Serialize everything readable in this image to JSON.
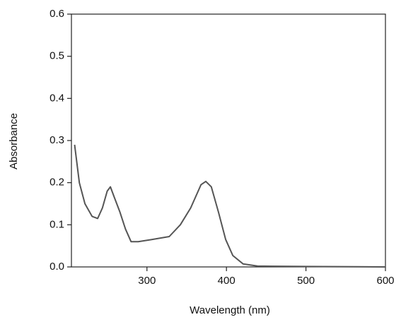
{
  "chart_data": {
    "type": "line",
    "x_label": "Wavelength (nm)",
    "y_label": "Absorbance",
    "x": [
      209,
      215,
      222,
      231,
      238,
      244,
      250,
      254,
      259,
      266,
      273,
      280,
      289,
      306,
      328,
      342,
      355,
      368,
      374,
      381,
      390,
      399,
      408,
      421,
      439,
      500,
      600
    ],
    "series": [
      {
        "name": "Absorbance",
        "color": "#555555",
        "values": [
          0.29,
          0.2,
          0.15,
          0.12,
          0.115,
          0.14,
          0.18,
          0.19,
          0.165,
          0.13,
          0.09,
          0.06,
          0.06,
          0.065,
          0.072,
          0.1,
          0.14,
          0.195,
          0.203,
          0.19,
          0.13,
          0.065,
          0.027,
          0.007,
          0.002,
          0.001,
          0
        ]
      }
    ],
    "xlim": [
      205,
      600
    ],
    "ylim": [
      0,
      0.6
    ],
    "xticks": [
      300,
      400,
      500,
      600
    ],
    "yticks": [
      {
        "value": 0,
        "label": "0.0"
      },
      0.1,
      0.2,
      0.3,
      0.4,
      0.5,
      0.6
    ]
  }
}
